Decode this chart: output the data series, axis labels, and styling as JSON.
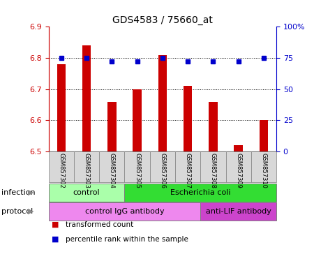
{
  "title": "GDS4583 / 75660_at",
  "samples": [
    "GSM857302",
    "GSM857303",
    "GSM857304",
    "GSM857305",
    "GSM857306",
    "GSM857307",
    "GSM857308",
    "GSM857309",
    "GSM857310"
  ],
  "red_values": [
    6.78,
    6.84,
    6.66,
    6.7,
    6.81,
    6.71,
    6.66,
    6.52,
    6.6
  ],
  "blue_values": [
    75,
    75,
    72,
    72,
    75,
    72,
    72,
    72,
    75
  ],
  "ylim_left": [
    6.5,
    6.9
  ],
  "ylim_right": [
    0,
    100
  ],
  "yticks_left": [
    6.5,
    6.6,
    6.7,
    6.8,
    6.9
  ],
  "yticks_right": [
    0,
    25,
    50,
    75,
    100
  ],
  "ytick_labels_right": [
    "0",
    "25",
    "50",
    "75",
    "100%"
  ],
  "bar_color": "#cc0000",
  "dot_color": "#0000cc",
  "bar_width": 0.35,
  "base_value": 6.5,
  "infection_control_color": "#aaffaa",
  "infection_ecoli_color": "#33dd33",
  "protocol_igg_color": "#ee88ee",
  "protocol_anti_color": "#cc44cc",
  "bg_color": "#d8d8d8",
  "left_axis_color": "#cc0000",
  "right_axis_color": "#0000cc",
  "legend_items": [
    {
      "color": "#cc0000",
      "label": "transformed count"
    },
    {
      "color": "#0000cc",
      "label": "percentile rank within the sample"
    }
  ],
  "infection_row_label": "infection",
  "protocol_row_label": "protocol"
}
